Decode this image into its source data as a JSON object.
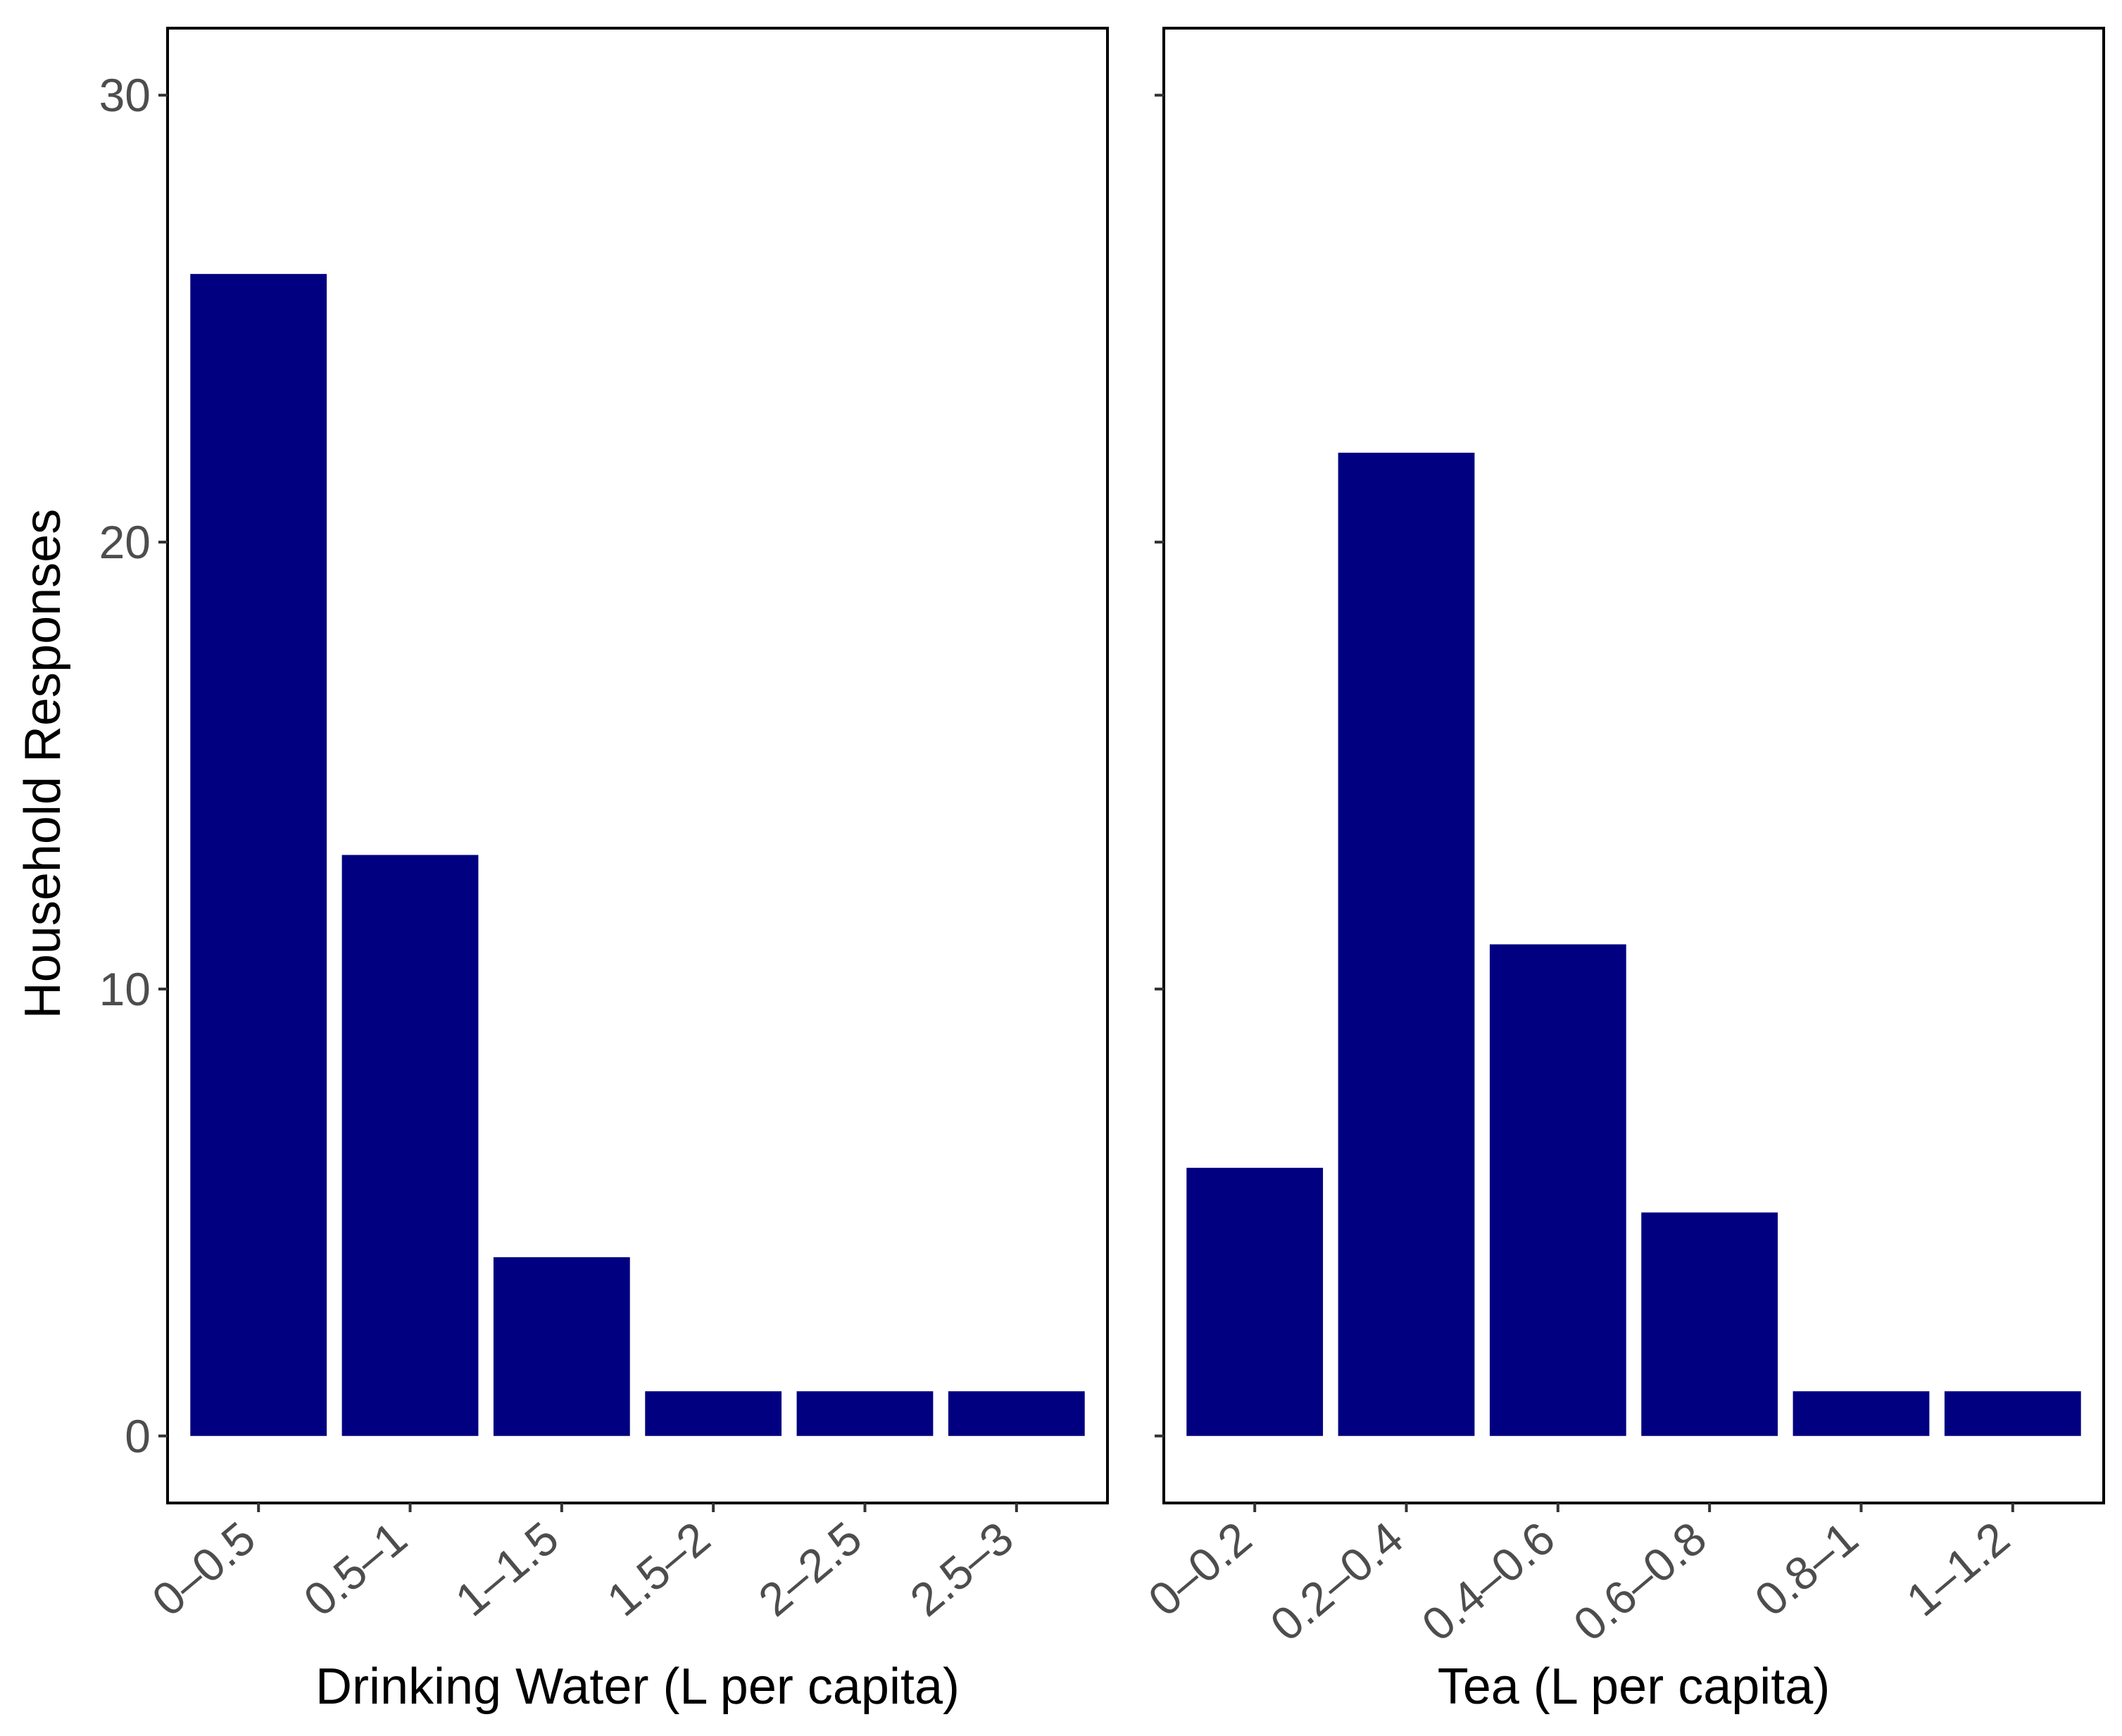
{
  "chart_data": {
    "type": "bar",
    "bar_color": "#000080",
    "ylabel": "Household Responses",
    "ylim": [
      -1.5,
      31.5
    ],
    "yticks": [
      0,
      10,
      20,
      30
    ],
    "panels": [
      {
        "xlabel": "Drinking Water (L per capita)",
        "categories": [
          "0–0.5",
          "0.5–1",
          "1–1.5",
          "1.5–2",
          "2–2.5",
          "2.5–3"
        ],
        "values": [
          26,
          13,
          4,
          1,
          1,
          1
        ]
      },
      {
        "xlabel": "Tea (L per capita)",
        "categories": [
          "0–0.2",
          "0.2–0.4",
          "0.4–0.6",
          "0.6–0.8",
          "0.8–1",
          "1–1.2"
        ],
        "values": [
          6,
          22,
          11,
          5,
          1,
          1
        ]
      }
    ]
  }
}
